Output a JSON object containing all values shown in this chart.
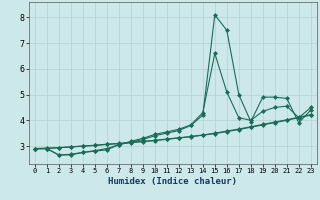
{
  "xlabel": "Humidex (Indice chaleur)",
  "background_color": "#cce8ea",
  "grid_color": "#b8d4d6",
  "line_color": "#1a6b5a",
  "xlim": [
    -0.5,
    23.5
  ],
  "ylim": [
    2.3,
    8.6
  ],
  "yticks": [
    3,
    4,
    5,
    6,
    7,
    8
  ],
  "xticks": [
    0,
    1,
    2,
    3,
    4,
    5,
    6,
    7,
    8,
    9,
    10,
    11,
    12,
    13,
    14,
    15,
    16,
    17,
    18,
    19,
    20,
    21,
    22,
    23
  ],
  "lines": [
    {
      "x": [
        0,
        1,
        2,
        3,
        4,
        5,
        6,
        7,
        8,
        9,
        10,
        11,
        12,
        13,
        14,
        15,
        16,
        17,
        18,
        19,
        20,
        21,
        22,
        23
      ],
      "y": [
        2.9,
        2.9,
        2.65,
        2.65,
        2.75,
        2.8,
        2.85,
        3.05,
        3.15,
        3.25,
        3.4,
        3.5,
        3.6,
        3.8,
        4.2,
        8.1,
        7.5,
        5.0,
        3.95,
        4.9,
        4.9,
        4.85,
        3.9,
        4.4
      ]
    },
    {
      "x": [
        0,
        1,
        2,
        3,
        4,
        5,
        6,
        7,
        8,
        9,
        10,
        11,
        12,
        13,
        14,
        15,
        16,
        17,
        18,
        19,
        20,
        21,
        22,
        23
      ],
      "y": [
        2.9,
        2.9,
        2.65,
        2.68,
        2.75,
        2.82,
        2.9,
        3.05,
        3.18,
        3.3,
        3.45,
        3.55,
        3.65,
        3.82,
        4.3,
        6.6,
        5.1,
        4.1,
        4.0,
        4.35,
        4.5,
        4.55,
        4.1,
        4.5
      ]
    },
    {
      "x": [
        0,
        1,
        2,
        3,
        4,
        5,
        6,
        7,
        8,
        9,
        10,
        11,
        12,
        13,
        14,
        15,
        16,
        17,
        18,
        19,
        20,
        21,
        22,
        23
      ],
      "y": [
        2.9,
        2.92,
        2.94,
        2.97,
        3.0,
        3.03,
        3.07,
        3.1,
        3.14,
        3.18,
        3.22,
        3.27,
        3.32,
        3.37,
        3.43,
        3.5,
        3.58,
        3.66,
        3.75,
        3.84,
        3.93,
        4.02,
        4.12,
        4.22
      ]
    },
    {
      "x": [
        0,
        1,
        2,
        3,
        4,
        5,
        6,
        7,
        8,
        9,
        10,
        11,
        12,
        13,
        14,
        15,
        16,
        17,
        18,
        19,
        20,
        21,
        22,
        23
      ],
      "y": [
        2.88,
        2.9,
        2.93,
        2.96,
        2.99,
        3.02,
        3.06,
        3.09,
        3.13,
        3.17,
        3.21,
        3.26,
        3.31,
        3.36,
        3.42,
        3.48,
        3.56,
        3.64,
        3.73,
        3.82,
        3.91,
        4.0,
        4.1,
        4.2
      ]
    }
  ]
}
